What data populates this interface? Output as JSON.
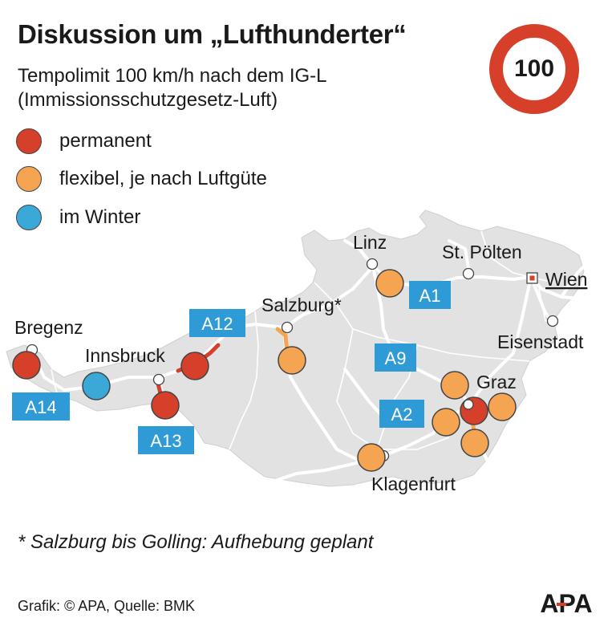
{
  "header": {
    "title": "Diskussion um „Lufthunderter“",
    "subtitle_line1": "Tempolimit 100 km/h nach dem IG-L",
    "subtitle_line2": "(Immissionsschutzgesetz-Luft)"
  },
  "sign": {
    "label": "100",
    "ring_color": "#d6402b"
  },
  "legend": [
    {
      "label": "permanent",
      "color": "#d6402b"
    },
    {
      "label": "flexibel, je nach Luftgüte",
      "color": "#f5a452"
    },
    {
      "label": "im Winter",
      "color": "#3aa9d8"
    }
  ],
  "map": {
    "land_color": "#e2e2e2",
    "road_color": "#ffffff",
    "box_color": "#2f9bd6",
    "cities": {
      "linz": "Linz",
      "st_poelten": "St. Pölten",
      "wien": "Wien",
      "salzburg": "Salzburg*",
      "bregenz": "Bregenz",
      "innsbruck": "Innsbruck",
      "eisenstadt": "Eisenstadt",
      "graz": "Graz",
      "klagenfurt": "Klagenfurt"
    },
    "highways": {
      "a1": "A1",
      "a9": "A9",
      "a12": "A12",
      "a14": "A14",
      "a13": "A13",
      "a2": "A2"
    },
    "markers": [
      {
        "id": "bregenz",
        "type": "permanent"
      },
      {
        "id": "a14-winter",
        "type": "im Winter"
      },
      {
        "id": "a12-inntal",
        "type": "permanent"
      },
      {
        "id": "a13-brenner",
        "type": "permanent"
      },
      {
        "id": "salzburg",
        "type": "flexibel"
      },
      {
        "id": "linz",
        "type": "flexibel"
      },
      {
        "id": "graz-nw",
        "type": "flexibel"
      },
      {
        "id": "graz",
        "type": "permanent"
      },
      {
        "id": "graz-e",
        "type": "flexibel"
      },
      {
        "id": "a2-west",
        "type": "flexibel"
      },
      {
        "id": "graz-s",
        "type": "flexibel"
      },
      {
        "id": "klagenfurt",
        "type": "flexibel"
      }
    ]
  },
  "footnote": "* Salzburg bis Golling: Aufhebung geplant",
  "source": "Grafik: © APA, Quelle: BMK",
  "logo": {
    "text": "APA",
    "accent_color": "#d6402b"
  }
}
